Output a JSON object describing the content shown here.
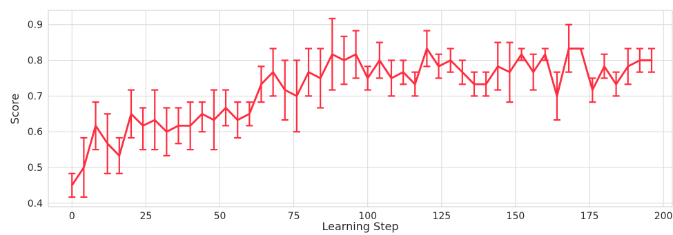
{
  "chart_data": {
    "type": "line",
    "xlabel": "Learning Step",
    "ylabel": "Score",
    "xlim": [
      -8,
      203
    ],
    "ylim": [
      0.39,
      0.94
    ],
    "xticks": [
      0,
      25,
      50,
      75,
      100,
      125,
      150,
      175,
      200
    ],
    "yticks": [
      0.4,
      0.5,
      0.6,
      0.7,
      0.8,
      0.9
    ],
    "grid": true,
    "color": "#ff2d3f",
    "series": [
      {
        "x": [
          0,
          4,
          8,
          12,
          16,
          20,
          24,
          28,
          32,
          36,
          40,
          44,
          48,
          52,
          56,
          60,
          64,
          68,
          72,
          76,
          80,
          84,
          88,
          92,
          96,
          100,
          104,
          108,
          112,
          116,
          120,
          124,
          128,
          132,
          136,
          140,
          144,
          148,
          152,
          156,
          160,
          164,
          168,
          172,
          176,
          180,
          184,
          188,
          192,
          196
        ],
        "y": [
          0.45,
          0.5,
          0.617,
          0.567,
          0.533,
          0.65,
          0.617,
          0.633,
          0.6,
          0.617,
          0.617,
          0.65,
          0.633,
          0.667,
          0.633,
          0.65,
          0.733,
          0.767,
          0.717,
          0.7,
          0.767,
          0.75,
          0.817,
          0.8,
          0.817,
          0.75,
          0.8,
          0.75,
          0.767,
          0.733,
          0.833,
          0.783,
          0.8,
          0.767,
          0.733,
          0.733,
          0.783,
          0.767,
          0.817,
          0.767,
          0.817,
          0.7,
          0.833,
          0.833,
          0.717,
          0.783,
          0.733,
          0.783,
          0.8,
          0.8
        ],
        "err_low": [
          0.417,
          0.417,
          0.55,
          0.483,
          0.483,
          0.583,
          0.55,
          0.55,
          0.533,
          0.567,
          0.55,
          0.6,
          0.55,
          0.617,
          0.583,
          0.617,
          0.683,
          0.7,
          0.633,
          0.6,
          0.7,
          0.667,
          0.717,
          0.733,
          0.75,
          0.717,
          0.75,
          0.7,
          0.733,
          0.7,
          0.783,
          0.75,
          0.767,
          0.733,
          0.7,
          0.7,
          0.717,
          0.683,
          0.8,
          0.717,
          0.8,
          0.633,
          0.767,
          0.833,
          0.683,
          0.75,
          0.7,
          0.733,
          0.767,
          0.767
        ],
        "err_high": [
          0.483,
          0.583,
          0.683,
          0.65,
          0.583,
          0.717,
          0.667,
          0.717,
          0.667,
          0.667,
          0.683,
          0.683,
          0.717,
          0.717,
          0.683,
          0.683,
          0.783,
          0.833,
          0.8,
          0.8,
          0.833,
          0.833,
          0.917,
          0.867,
          0.883,
          0.783,
          0.85,
          0.8,
          0.8,
          0.767,
          0.883,
          0.817,
          0.833,
          0.8,
          0.767,
          0.767,
          0.85,
          0.85,
          0.833,
          0.817,
          0.833,
          0.767,
          0.9,
          0.833,
          0.75,
          0.817,
          0.767,
          0.833,
          0.833,
          0.833
        ]
      }
    ]
  }
}
